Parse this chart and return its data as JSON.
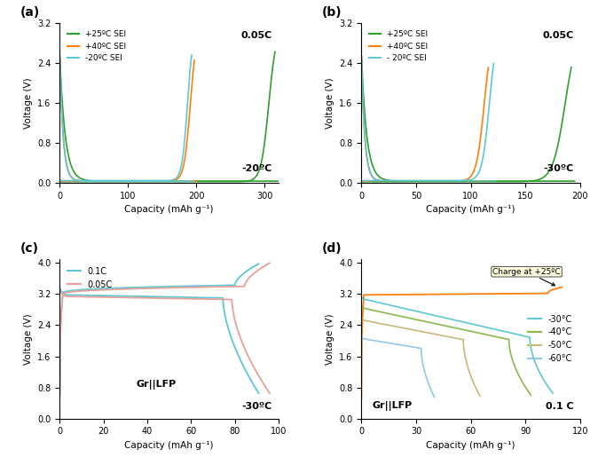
{
  "fig_width": 6.74,
  "fig_height": 5.24,
  "dpi": 100,
  "panel_labels": [
    "(a)",
    "(b)",
    "(c)",
    "(d)"
  ],
  "panel_a": {
    "xlabel": "Capacity (mAh g⁻¹)",
    "ylabel": "Voltage (V)",
    "ylim": [
      0,
      3.2
    ],
    "xlim": [
      0,
      320
    ],
    "yticks": [
      0.0,
      0.8,
      1.6,
      2.4,
      3.2
    ],
    "xticks": [
      0,
      100,
      200,
      300
    ],
    "annotation_rate": "0.05C",
    "annotation_temp": "-20ºC",
    "legend_labels": [
      "+25ºC SEI",
      "+40ºC SEI",
      "-20ºC SEI"
    ],
    "legend_colors": [
      "#2ca02c",
      "#ff7f0e",
      "#5bc8d4"
    ]
  },
  "panel_b": {
    "xlabel": "Capacity (mAh g⁻¹)",
    "ylabel": "Voltage (V)",
    "ylim": [
      0,
      3.2
    ],
    "xlim": [
      0,
      200
    ],
    "yticks": [
      0.0,
      0.8,
      1.6,
      2.4,
      3.2
    ],
    "xticks": [
      0,
      50,
      100,
      150,
      200
    ],
    "annotation_rate": "0.05C",
    "annotation_temp": "-30ºC",
    "legend_labels": [
      "+25ºC SEI",
      "+40ºC SEI",
      "- 20ºC SEI"
    ],
    "legend_colors": [
      "#2ca02c",
      "#ff7f0e",
      "#5bc8d4"
    ]
  },
  "panel_c": {
    "xlabel": "Capacity (mAh g⁻¹)",
    "ylabel": "Voltage (V)",
    "ylim": [
      0,
      4.1
    ],
    "xlim": [
      0,
      100
    ],
    "yticks": [
      0.0,
      0.8,
      1.6,
      2.4,
      3.2,
      4.0
    ],
    "xticks": [
      0,
      20,
      40,
      60,
      80,
      100
    ],
    "annotation_temp": "-30ºC",
    "annotation_label": "Gr||LFP",
    "legend_labels": [
      "0.1C",
      "0.05C"
    ],
    "legend_colors": [
      "#5bc8d4",
      "#e8a09a"
    ]
  },
  "panel_d": {
    "xlabel": "Capacity (mAh g⁻¹)",
    "ylabel": "Voltage (V)",
    "ylim": [
      0,
      4.1
    ],
    "xlim": [
      0,
      120
    ],
    "yticks": [
      0.0,
      0.8,
      1.6,
      2.4,
      3.2,
      4.0
    ],
    "xticks": [
      0,
      30,
      60,
      90,
      120
    ],
    "annotation_rate": "0.1 C",
    "annotation_label": "Gr||LFP",
    "annotation_charge": "Charge at +25ºC",
    "legend_labels": [
      "-30°C",
      "-40°C",
      "-50°C",
      "-60°C"
    ],
    "legend_colors": [
      "#5bc8d4",
      "#8ab84a",
      "#c8b87a",
      "#90c8e8"
    ]
  }
}
